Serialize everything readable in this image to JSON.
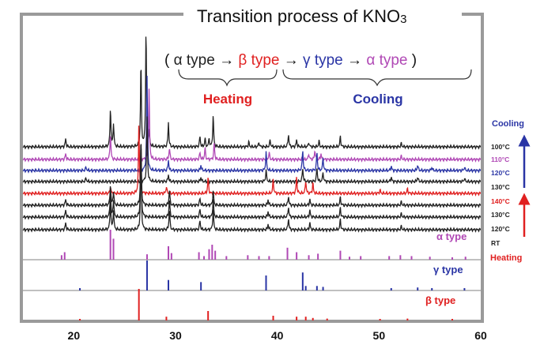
{
  "chart_data": {
    "type": "line",
    "title": "Transition process of KNO",
    "title_sub": "3",
    "sequence": {
      "open": "(",
      "alpha1": "α type",
      "arrow1": "→",
      "beta": "β type",
      "arrow2": "→",
      "gamma": "γ type",
      "arrow3": "→",
      "alpha2": "α type",
      "close": ")"
    },
    "brackets": {
      "heating": "Heating",
      "cooling": "Cooling"
    },
    "side_arrows": {
      "top": "Cooling",
      "bottom": "Heating"
    },
    "xlim": [
      15,
      60
    ],
    "x_ticks": [
      20,
      30,
      40,
      50,
      60
    ],
    "grid": false,
    "colors": {
      "alpha": "#b048b5",
      "beta": "#e02020",
      "gamma": "#2a35a5",
      "black": "#222222",
      "cool_arrow": "#2a35a5",
      "heat_arrow": "#e02020"
    },
    "series": [
      {
        "name": "100°C",
        "color": "black",
        "peaks": [
          [
            19.2,
            0.07
          ],
          [
            23.6,
            0.33
          ],
          [
            23.9,
            0.2
          ],
          [
            26.6,
            0.72
          ],
          [
            27.1,
            1.0
          ],
          [
            27.4,
            0.12
          ],
          [
            29.3,
            0.21
          ],
          [
            32.4,
            0.09
          ],
          [
            32.9,
            0.07
          ],
          [
            33.3,
            0.07
          ],
          [
            33.7,
            0.27
          ],
          [
            37.2,
            0.04
          ],
          [
            38.2,
            0.04
          ],
          [
            39.3,
            0.06
          ],
          [
            41.1,
            0.11
          ],
          [
            41.9,
            0.06
          ],
          [
            43.1,
            0.04
          ],
          [
            44.1,
            0.05
          ],
          [
            46.2,
            0.09
          ],
          [
            52.2,
            0.03
          ]
        ]
      },
      {
        "name": "110°C",
        "color": "alpha",
        "peaks": [
          [
            19.2,
            0.05
          ],
          [
            23.6,
            0.22
          ],
          [
            27.4,
            0.6
          ],
          [
            29.4,
            0.1
          ],
          [
            32.4,
            0.06
          ],
          [
            32.9,
            0.1
          ],
          [
            33.8,
            0.14
          ],
          [
            39.2,
            0.06
          ],
          [
            43.1,
            0.05
          ],
          [
            43.7,
            0.08
          ],
          [
            44.3,
            0.05
          ],
          [
            52.2,
            0.03
          ]
        ]
      },
      {
        "name": "120°C",
        "color": "gamma",
        "peaks": [
          [
            21.2,
            0.03
          ],
          [
            27.2,
            0.8
          ],
          [
            29.3,
            0.09
          ],
          [
            32.5,
            0.05
          ],
          [
            38.9,
            0.16
          ],
          [
            42.5,
            0.18
          ],
          [
            43.9,
            0.16
          ],
          [
            44.5,
            0.11
          ],
          [
            51.2,
            0.04
          ],
          [
            53.8,
            0.05
          ],
          [
            55.2,
            0.03
          ],
          [
            58.4,
            0.03
          ]
        ]
      },
      {
        "name": "130°C",
        "color": "black",
        "peaks": [
          [
            21.2,
            0.03
          ],
          [
            27.2,
            0.55
          ],
          [
            29.3,
            0.06
          ],
          [
            32.5,
            0.04
          ],
          [
            38.9,
            0.1
          ],
          [
            42.5,
            0.12
          ],
          [
            43.9,
            0.12
          ],
          [
            44.5,
            0.08
          ],
          [
            51.2,
            0.04
          ],
          [
            53.8,
            0.04
          ],
          [
            58.4,
            0.03
          ]
        ]
      },
      {
        "name": "140°C",
        "color": "beta",
        "peaks": [
          [
            23.6,
            0.06
          ],
          [
            26.4,
            0.62
          ],
          [
            29.1,
            0.06
          ],
          [
            33.2,
            0.14
          ],
          [
            39.6,
            0.12
          ],
          [
            41.9,
            0.14
          ],
          [
            42.8,
            0.11
          ],
          [
            43.5,
            0.09
          ],
          [
            50.1,
            0.03
          ],
          [
            52.8,
            0.04
          ]
        ]
      },
      {
        "name": "130°C",
        "color": "black",
        "peaks": [
          [
            19.2,
            0.05
          ],
          [
            23.6,
            0.18
          ],
          [
            23.9,
            0.12
          ],
          [
            26.6,
            0.58
          ],
          [
            29.4,
            0.14
          ],
          [
            32.4,
            0.06
          ],
          [
            33.7,
            0.13
          ],
          [
            39.1,
            0.05
          ],
          [
            41.1,
            0.08
          ],
          [
            43.2,
            0.05
          ],
          [
            46.2,
            0.07
          ],
          [
            52.2,
            0.03
          ]
        ]
      },
      {
        "name": "120°C",
        "color": "black",
        "peaks": [
          [
            19.2,
            0.06
          ],
          [
            23.6,
            0.22
          ],
          [
            23.9,
            0.15
          ],
          [
            26.6,
            0.65
          ],
          [
            29.4,
            0.16
          ],
          [
            32.4,
            0.07
          ],
          [
            33.7,
            0.16
          ],
          [
            39.1,
            0.05
          ],
          [
            41.1,
            0.09
          ],
          [
            43.2,
            0.06
          ],
          [
            46.2,
            0.08
          ],
          [
            52.2,
            0.03
          ]
        ]
      },
      {
        "name": "RT",
        "color": "black",
        "peaks": [
          [
            19.2,
            0.06
          ],
          [
            23.6,
            0.25
          ],
          [
            23.9,
            0.17
          ],
          [
            26.6,
            0.7
          ],
          [
            29.4,
            0.18
          ],
          [
            32.4,
            0.08
          ],
          [
            33.7,
            0.18
          ],
          [
            39.1,
            0.05
          ],
          [
            41.1,
            0.1
          ],
          [
            43.2,
            0.06
          ],
          [
            46.2,
            0.09
          ],
          [
            52.2,
            0.03
          ]
        ]
      }
    ],
    "references": [
      {
        "name": "α type",
        "color": "alpha",
        "sticks": [
          [
            18.8,
            0.15
          ],
          [
            19.1,
            0.25
          ],
          [
            23.6,
            1.0
          ],
          [
            23.9,
            0.7
          ],
          [
            27.2,
            0.18
          ],
          [
            29.3,
            0.45
          ],
          [
            29.6,
            0.22
          ],
          [
            32.3,
            0.25
          ],
          [
            32.8,
            0.12
          ],
          [
            33.3,
            0.35
          ],
          [
            33.6,
            0.5
          ],
          [
            33.9,
            0.3
          ],
          [
            35.0,
            0.12
          ],
          [
            37.1,
            0.15
          ],
          [
            38.2,
            0.12
          ],
          [
            39.2,
            0.12
          ],
          [
            41.0,
            0.4
          ],
          [
            41.9,
            0.25
          ],
          [
            43.1,
            0.15
          ],
          [
            44.0,
            0.2
          ],
          [
            46.2,
            0.3
          ],
          [
            47.1,
            0.1
          ],
          [
            48.2,
            0.12
          ],
          [
            51.0,
            0.12
          ],
          [
            52.1,
            0.15
          ],
          [
            53.2,
            0.12
          ],
          [
            55.0,
            0.1
          ],
          [
            57.2,
            0.08
          ],
          [
            58.5,
            0.1
          ]
        ]
      },
      {
        "name": "γ type",
        "color": "gamma",
        "sticks": [
          [
            20.6,
            0.08
          ],
          [
            27.2,
            1.0
          ],
          [
            29.3,
            0.35
          ],
          [
            32.5,
            0.28
          ],
          [
            38.9,
            0.5
          ],
          [
            42.5,
            0.6
          ],
          [
            42.8,
            0.15
          ],
          [
            43.9,
            0.15
          ],
          [
            44.5,
            0.12
          ],
          [
            51.2,
            0.08
          ],
          [
            53.8,
            0.1
          ],
          [
            55.2,
            0.08
          ],
          [
            58.4,
            0.08
          ]
        ]
      },
      {
        "name": "β type",
        "color": "beta",
        "sticks": [
          [
            20.6,
            0.05
          ],
          [
            26.4,
            1.0
          ],
          [
            29.1,
            0.12
          ],
          [
            33.2,
            0.3
          ],
          [
            39.6,
            0.15
          ],
          [
            41.9,
            0.12
          ],
          [
            42.8,
            0.12
          ],
          [
            43.5,
            0.08
          ],
          [
            44.9,
            0.06
          ],
          [
            50.1,
            0.05
          ],
          [
            52.8,
            0.06
          ],
          [
            57.2,
            0.05
          ]
        ]
      }
    ]
  }
}
